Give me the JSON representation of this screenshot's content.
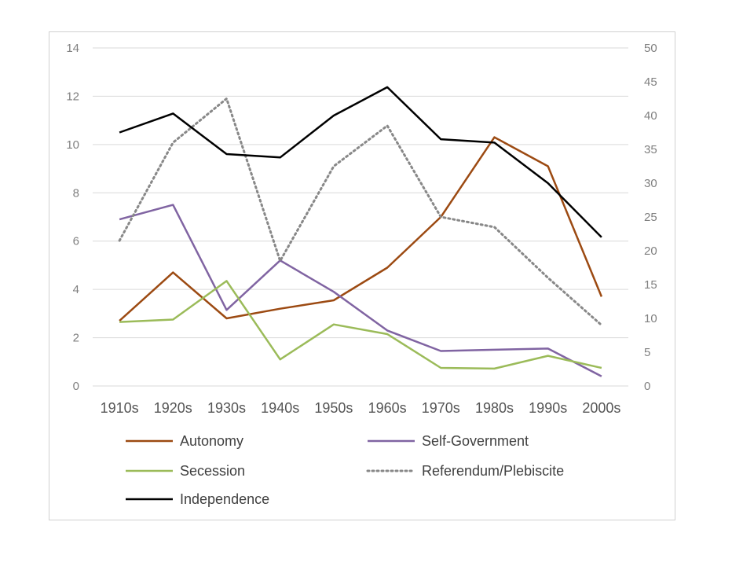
{
  "chart_data": {
    "type": "line",
    "categories": [
      "1910s",
      "1920s",
      "1930s",
      "1940s",
      "1950s",
      "1960s",
      "1970s",
      "1980s",
      "1990s",
      "2000s"
    ],
    "y_left": {
      "min": 0,
      "max": 14,
      "ticks": [
        "0",
        "2",
        "4",
        "6",
        "8",
        "10",
        "12",
        "14"
      ]
    },
    "y_right": {
      "min": 0,
      "max": 50,
      "ticks": [
        "0",
        "5",
        "10",
        "15",
        "20",
        "25",
        "30",
        "35",
        "40",
        "45",
        "50"
      ]
    },
    "grid": true,
    "legend_position": "bottom",
    "series": [
      {
        "name": "Autonomy",
        "axis": "left",
        "color": "#9c4a12",
        "dash": false,
        "values": [
          2.7,
          4.7,
          2.8,
          3.2,
          3.55,
          4.9,
          7.0,
          10.3,
          9.1,
          3.7
        ]
      },
      {
        "name": "Self-Government",
        "axis": "left",
        "color": "#8064a2",
        "dash": false,
        "values": [
          6.9,
          7.5,
          3.15,
          5.2,
          3.9,
          2.3,
          1.45,
          1.5,
          1.55,
          0.4
        ]
      },
      {
        "name": "Secession",
        "axis": "left",
        "color": "#9bbb59",
        "dash": false,
        "values": [
          2.65,
          2.75,
          4.35,
          1.1,
          2.55,
          2.15,
          0.75,
          0.72,
          1.25,
          0.75
        ]
      },
      {
        "name": "Referendum/Plebiscite",
        "axis": "right",
        "color": "#888888",
        "dash": true,
        "values": [
          21.5,
          36.0,
          42.5,
          18.5,
          32.5,
          38.5,
          25.0,
          23.5,
          16.0,
          9.0
        ]
      },
      {
        "name": "Independence",
        "axis": "right",
        "color": "#000000",
        "dash": false,
        "values": [
          37.5,
          40.3,
          34.3,
          33.8,
          40.0,
          44.2,
          36.5,
          36.0,
          30.0,
          22.0
        ]
      }
    ]
  }
}
